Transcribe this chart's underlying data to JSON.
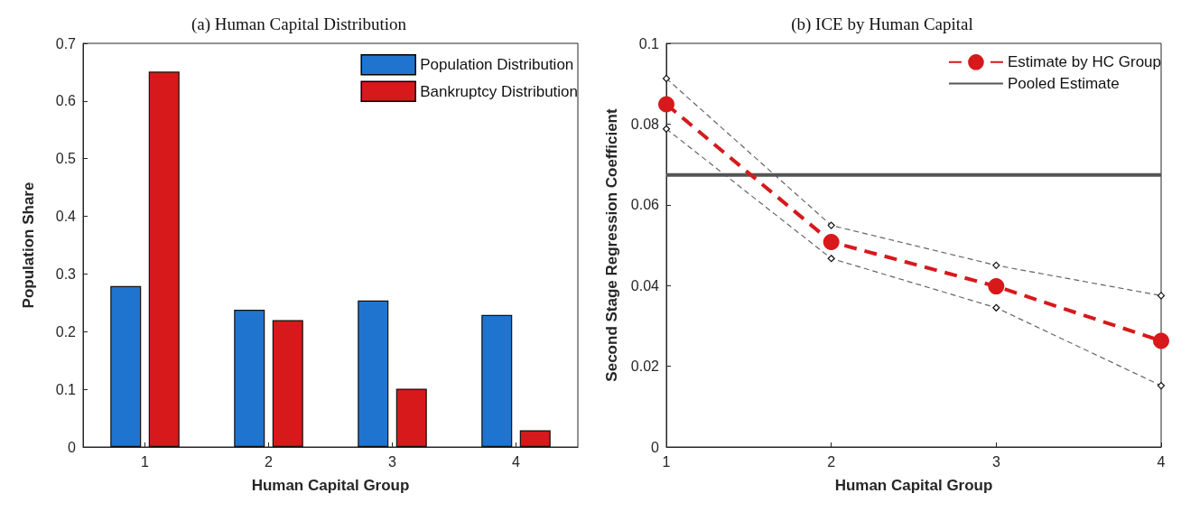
{
  "chart_data": [
    {
      "type": "bar",
      "title": "(a) Human Capital Distribution",
      "xlabel": "Human Capital Group",
      "ylabel": "Population Share",
      "categories": [
        "1",
        "2",
        "3",
        "4"
      ],
      "series": [
        {
          "name": "Population Distribution",
          "color": "#1f74d0",
          "values": [
            0.279,
            0.238,
            0.254,
            0.229
          ]
        },
        {
          "name": "Bankruptcy Distribution",
          "color": "#d7191c",
          "values": [
            0.651,
            0.22,
            0.101,
            0.029
          ]
        }
      ],
      "ylim": [
        0,
        0.7
      ],
      "yticks": [
        0,
        0.1,
        0.2,
        0.3,
        0.4,
        0.5,
        0.6,
        0.7
      ],
      "grid": false,
      "legend": "top right"
    },
    {
      "type": "line",
      "title": "(b) ICE by Human Capital",
      "xlabel": "Human Capital Group",
      "ylabel": "Second Stage Regression Coefficient",
      "x": [
        1,
        2,
        3,
        4
      ],
      "series": [
        {
          "color": "#666666",
          "values": [
            0.0913,
            0.0549,
            0.045,
            0.0375
          ],
          "marker": "diamond",
          "line_style": "dashed"
        },
        {
          "color": "#666666",
          "values": [
            0.0788,
            0.0467,
            0.0345,
            0.0152
          ],
          "marker": "diamond",
          "line_style": "dashed"
        },
        {
          "name": "Estimate by HC Group",
          "color": "#d7191c",
          "values": [
            0.0849,
            0.0508,
            0.0398,
            0.0263
          ],
          "marker": "circle",
          "line_style": "dashed"
        },
        {
          "name": "Pooled Estimate",
          "color": "#555555",
          "x": [
            1,
            4
          ],
          "values": [
            0.0674,
            0.0674
          ],
          "marker": "none",
          "line_style": "solid"
        }
      ],
      "xlim": [
        1,
        4
      ],
      "xticks": [
        1,
        2,
        3,
        4
      ],
      "ylim": [
        0,
        0.1
      ],
      "yticks": [
        0,
        0.02,
        0.04,
        0.06,
        0.08,
        0.1
      ],
      "grid": false,
      "legend": "top right"
    }
  ]
}
